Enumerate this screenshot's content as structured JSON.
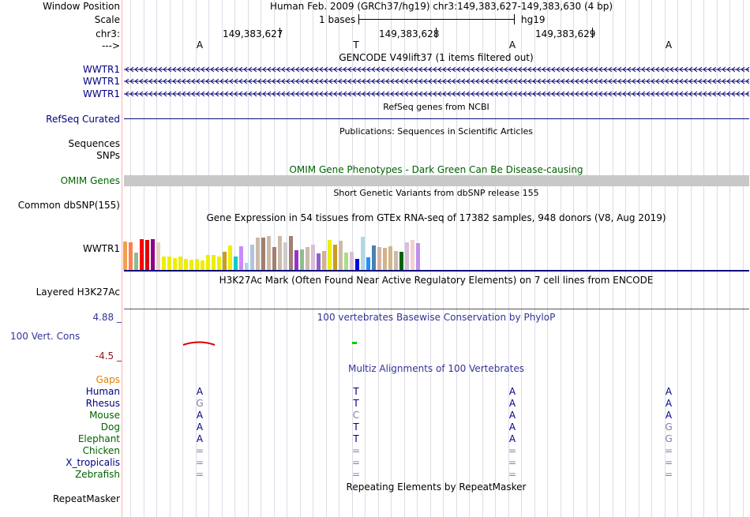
{
  "header": {
    "window_position_label": "Window Position",
    "window_position_value": "Human Feb. 2009 (GRCh37/hg19)   chr3:149,383,627-149,383,630 (4 bp)",
    "scale_label": "Scale",
    "scale_text": "1 bases",
    "assembly": "hg19",
    "chrom_label": "chr3:",
    "coords": [
      "149,383,627",
      "149,383,628",
      "149,383,629"
    ],
    "arrow_label": "--->",
    "bases": [
      "A",
      "T",
      "A",
      "A"
    ]
  },
  "tracks": {
    "gencode": {
      "title": "GENCODE V49lift37 (1 items filtered out)",
      "items": [
        "WWTR1",
        "WWTR1",
        "WWTR1"
      ],
      "color": "#0c0c78"
    },
    "refseq": {
      "title": "RefSeq genes from NCBI",
      "label": "RefSeq Curated",
      "color": "#0c0c78"
    },
    "pubs": {
      "title": "Publications: Sequences in Scientific Articles",
      "labels": [
        "Sequences",
        "SNPs"
      ]
    },
    "omim": {
      "title": "OMIM Gene Phenotypes - Dark Green Can Be Disease-causing",
      "label": "OMIM Genes",
      "color": "#006400"
    },
    "dbsnp": {
      "title": "Short Genetic Variants from dbSNP release 155",
      "label": "Common dbSNP(155)"
    },
    "gtex": {
      "title": "Gene Expression in 54 tissues from GTEx RNA-seq of 17382 samples, 948 donors (V8, Aug 2019)",
      "label": "WWTR1",
      "values": [
        0.62,
        0.6,
        0.38,
        0.68,
        0.66,
        0.68,
        0.6,
        0.29,
        0.3,
        0.25,
        0.3,
        0.24,
        0.22,
        0.24,
        0.2,
        0.32,
        0.32,
        0.3,
        0.4,
        0.54,
        0.3,
        0.52,
        0.16,
        0.56,
        0.7,
        0.7,
        0.74,
        0.5,
        0.74,
        0.6,
        0.74,
        0.43,
        0.44,
        0.5,
        0.56,
        0.36,
        0.42,
        0.66,
        0.56,
        0.64,
        0.38,
        0.4,
        0.24,
        0.72,
        0.28,
        0.54,
        0.5,
        0.48,
        0.52,
        0.42,
        0.4,
        0.6,
        0.66,
        0.58
      ],
      "colors": [
        "#f0a050",
        "#ff7f50",
        "#8fbc8f",
        "#ff0000",
        "#dd0000",
        "#8b008b",
        "#e8d0c0",
        "#eeee00",
        "#eeee00",
        "#eeee00",
        "#eeee00",
        "#eeee00",
        "#eeee00",
        "#eeee00",
        "#eeee00",
        "#eeee00",
        "#eeee00",
        "#eeee00",
        "#cd9b1d",
        "#eeee00",
        "#00ced1",
        "#cc88ff",
        "#add8e6",
        "#b0c4de",
        "#ccbbaa",
        "#a08070",
        "#ccbbaa",
        "#a08070",
        "#ccbbaa",
        "#cccccc",
        "#a08070",
        "#9932cc",
        "#8fbc8f",
        "#ccbbaa",
        "#d8bfd8",
        "#9060cc",
        "#d2b48c",
        "#eeee00",
        "#cd9b1d",
        "#ccbbaa",
        "#aadd88",
        "#d8bfd8",
        "#0000dd",
        "#add8e6",
        "#1e90ff",
        "#4682b4",
        "#d8b4a0",
        "#d2b48c",
        "#d2b48c",
        "#ccbbaa",
        "#006400",
        "#d8bfd8",
        "#f4d0d0",
        "#c090ee"
      ]
    },
    "h3k27ac": {
      "title": "H3K27Ac Mark (Often Found Near Active Regulatory Elements) on 7 cell lines from ENCODE",
      "label": "Layered H3K27Ac"
    },
    "phylop": {
      "title": "100 vertebrates Basewise Conservation by PhyloP",
      "label": "100 Vert. Cons",
      "max": "4.88 _",
      "min": "-4.5 _",
      "color": "#333399"
    },
    "multiz": {
      "title": "Multiz Alignments of 100 Vertebrates",
      "gaps_label": "Gaps",
      "species": [
        {
          "name": "Human",
          "bases": [
            "A",
            "T",
            "A",
            "A"
          ],
          "color": "#000080"
        },
        {
          "name": "Rhesus",
          "bases": [
            "G",
            "T",
            "A",
            "A"
          ],
          "color": "#000080"
        },
        {
          "name": "Mouse",
          "bases": [
            "A",
            "C",
            "A",
            "A"
          ],
          "color": "#006400"
        },
        {
          "name": "Dog",
          "bases": [
            "A",
            "T",
            "A",
            "G"
          ],
          "color": "#006400"
        },
        {
          "name": "Elephant",
          "bases": [
            "A",
            "T",
            "A",
            "G"
          ],
          "color": "#006400"
        },
        {
          "name": "Chicken",
          "bases": [
            "=",
            "=",
            "=",
            "="
          ],
          "color": "#006400"
        },
        {
          "name": "X_tropicalis",
          "bases": [
            "=",
            "=",
            "=",
            "="
          ],
          "color": "#000080"
        },
        {
          "name": "Zebrafish",
          "bases": [
            "=",
            "=",
            "=",
            "="
          ],
          "color": "#006400"
        }
      ]
    },
    "repeatmasker": {
      "title": "Repeating Elements by RepeatMasker",
      "label": "RepeatMasker"
    }
  }
}
